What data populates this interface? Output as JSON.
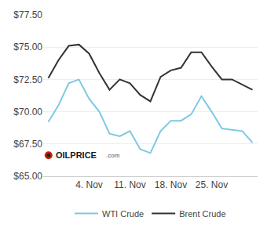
{
  "chart_data": {
    "type": "line",
    "x": [
      1,
      2,
      3,
      4,
      5,
      6,
      7,
      8,
      9,
      10,
      11,
      12,
      13,
      14,
      15,
      16,
      17,
      18,
      19,
      20,
      21
    ],
    "series": [
      {
        "name": "WTI Crude",
        "color": "#7ec8e3",
        "values": [
          69.2,
          70.5,
          72.2,
          72.5,
          71.0,
          70.0,
          68.3,
          68.1,
          68.5,
          67.1,
          66.8,
          68.5,
          69.3,
          69.3,
          69.8,
          71.2,
          70.0,
          68.7,
          68.6,
          68.5,
          67.6
        ]
      },
      {
        "name": "Brent Crude",
        "color": "#333333",
        "values": [
          72.6,
          74.0,
          75.1,
          75.2,
          74.5,
          73.0,
          71.7,
          72.5,
          72.2,
          71.3,
          70.8,
          72.7,
          73.2,
          73.4,
          74.6,
          74.6,
          73.5,
          72.5,
          72.5,
          72.1,
          71.7
        ]
      }
    ],
    "xlim": [
      0.5,
      21.5
    ],
    "xticks": [
      {
        "value": 5,
        "label": "4. Nov"
      },
      {
        "value": 9,
        "label": "11. Nov"
      },
      {
        "value": 13,
        "label": "18. Nov"
      },
      {
        "value": 17,
        "label": "25. Nov"
      }
    ],
    "ylim": [
      65.0,
      77.5
    ],
    "yticks": [
      {
        "value": 65.0,
        "label": "$65.00"
      },
      {
        "value": 67.5,
        "label": "$67.50"
      },
      {
        "value": 70.0,
        "label": "$70.00"
      },
      {
        "value": 72.5,
        "label": "$72.50"
      },
      {
        "value": 75.0,
        "label": "$75.00"
      },
      {
        "value": 77.5,
        "label": "$77.50"
      }
    ],
    "grid": true,
    "legend": "lower center",
    "annotations": [
      "OILPRICE",
      ".com"
    ]
  }
}
